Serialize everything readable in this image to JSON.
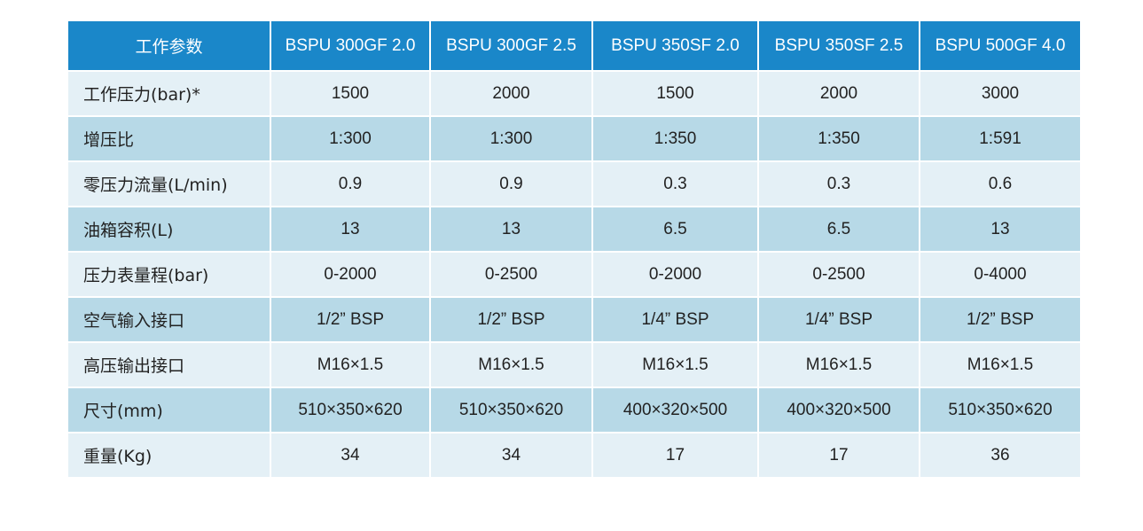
{
  "table": {
    "header": [
      "工作参数",
      "BSPU 300GF 2.0",
      "BSPU 300GF 2.5",
      "BSPU 350SF 2.0",
      "BSPU 350SF 2.5",
      "BSPU 500GF 4.0"
    ],
    "rows": [
      [
        "工作压力(bar)*",
        "1500",
        "2000",
        "1500",
        "2000",
        "3000"
      ],
      [
        "增压比",
        "1:300",
        "1:300",
        "1:350",
        "1:350",
        "1:591"
      ],
      [
        "零压力流量(L/min)",
        "0.9",
        "0.9",
        "0.3",
        "0.3",
        "0.6"
      ],
      [
        "油箱容积(L)",
        "13",
        "13",
        "6.5",
        "6.5",
        "13"
      ],
      [
        "压力表量程(bar)",
        "0-2000",
        "0-2500",
        "0-2000",
        "0-2500",
        "0-4000"
      ],
      [
        "空气输入接口",
        "1/2” BSP",
        "1/2” BSP",
        "1/4” BSP",
        "1/4” BSP",
        "1/2” BSP"
      ],
      [
        "高压输出接口",
        "M16×1.5",
        "M16×1.5",
        "M16×1.5",
        "M16×1.5",
        "M16×1.5"
      ],
      [
        "尺寸(mm)",
        "510×350×620",
        "510×350×620",
        "400×320×500",
        "400×320×500",
        "510×350×620"
      ],
      [
        "重量(Kg)",
        "34",
        "34",
        "17",
        "17",
        "36"
      ]
    ]
  },
  "colors": {
    "header_bg": "#1a87c9",
    "row_light": "#e4f0f6",
    "row_dark": "#b7d9e7"
  }
}
